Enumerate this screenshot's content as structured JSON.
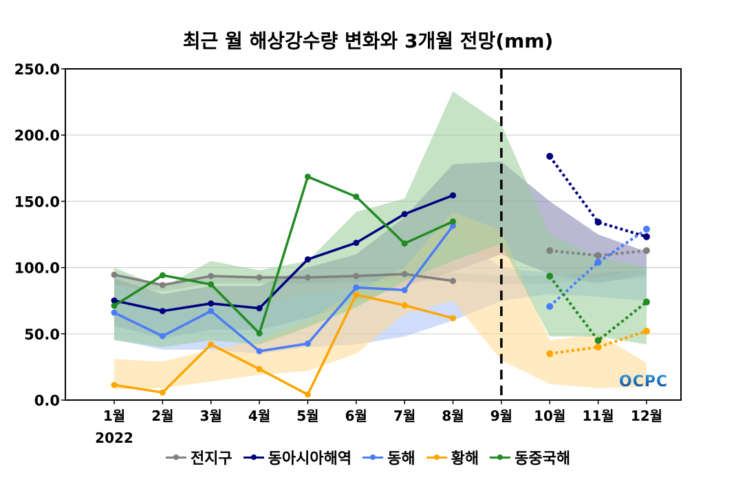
{
  "chart_data": {
    "type": "line",
    "title": "최근 월 해상강수량 변화와 3개월 전망(mm)",
    "xlabel": "",
    "ylabel": "",
    "year_label": "2022",
    "categories": [
      "1월",
      "2월",
      "3월",
      "4월",
      "5월",
      "6월",
      "7월",
      "8월",
      "9월",
      "10월",
      "11월",
      "12월"
    ],
    "ylim": [
      0,
      250
    ],
    "yticks": [
      "0.0",
      "50.0",
      "100.0",
      "150.0",
      "200.0",
      "250.0"
    ],
    "ytick_values": [
      0,
      50,
      100,
      150,
      200,
      250
    ],
    "grid": true,
    "legend_position": "bottom",
    "forecast_divider_month": "9월",
    "logo_text": "OCPC",
    "series": [
      {
        "name": "전지구",
        "color": "#808080",
        "observed": [
          94.6,
          86.8,
          93.6,
          92.5,
          92.5,
          93.6,
          95.1,
          89.9
        ],
        "forecast_months": [
          "10월",
          "11월",
          "12월"
        ],
        "forecast": [
          112.8,
          109.1,
          112.8
        ],
        "band_color": "#b8b8c8",
        "band_lower": [
          87,
          82,
          88,
          88,
          88,
          89,
          90,
          90,
          88,
          88,
          90,
          92
        ],
        "band_upper": [
          94,
          88,
          94,
          94,
          94,
          95,
          96,
          96,
          94,
          94,
          96,
          98
        ]
      },
      {
        "name": "동아시아해역",
        "color": "#00007f",
        "observed": [
          75.1,
          67.2,
          72.9,
          69.3,
          106.2,
          118.7,
          140.4,
          154.5
        ],
        "forecast_months": [
          "10월",
          "11월",
          "12월"
        ],
        "forecast": [
          184.0,
          134.3,
          123.3
        ],
        "band_color": "#8080b0",
        "band_lower": [
          56,
          47,
          53,
          53,
          62,
          74,
          86,
          97,
          110,
          95,
          88,
          95
        ],
        "band_upper": [
          92,
          80,
          86,
          86,
          100,
          110,
          138,
          178,
          180,
          150,
          125,
          112
        ]
      },
      {
        "name": "동해",
        "color": "#4a7cf7",
        "observed": [
          66.0,
          48.3,
          67.2,
          36.9,
          42.6,
          85.0,
          83.0,
          131.6
        ],
        "forecast_months": [
          "10월",
          "11월",
          "12월"
        ],
        "forecast": [
          70.7,
          104.0,
          129.0
        ],
        "band_color": "#a8bff8",
        "band_lower": [
          46,
          38,
          38,
          35,
          40,
          42,
          48,
          60,
          75,
          80,
          78,
          75
        ],
        "band_upper": [
          88,
          70,
          72,
          72,
          80,
          85,
          95,
          125,
          100,
          96,
          92,
          100
        ]
      },
      {
        "name": "황해",
        "color": "#ffa500",
        "observed": [
          11.4,
          5.7,
          42.0,
          23.4,
          4.2,
          79.5,
          71.5,
          61.8
        ],
        "forecast_months": [
          "10월",
          "11월",
          "12월"
        ],
        "forecast": [
          35.0,
          40.0,
          52.0
        ],
        "band_color": "#ffd890",
        "band_lower": [
          8,
          9,
          14,
          19,
          22,
          35,
          65,
          75,
          30,
          12,
          9,
          10
        ],
        "band_upper": [
          31,
          29,
          38,
          45,
          60,
          82,
          100,
          142,
          128,
          45,
          50,
          28
        ]
      },
      {
        "name": "동중국해",
        "color": "#228b22",
        "observed": [
          71.2,
          94.2,
          87.3,
          50.4,
          168.6,
          153.5,
          118.2,
          134.8
        ],
        "forecast_months": [
          "10월",
          "11월",
          "12월"
        ],
        "forecast": [
          93.5,
          45.0,
          74.0
        ],
        "band_color": "#98cc98",
        "band_lower": [
          45,
          40,
          45,
          42,
          55,
          70,
          90,
          105,
          118,
          48,
          48,
          42
        ],
        "band_upper": [
          100,
          85,
          105,
          98,
          105,
          142,
          152,
          233,
          208,
          125,
          108,
          100
        ]
      }
    ]
  }
}
